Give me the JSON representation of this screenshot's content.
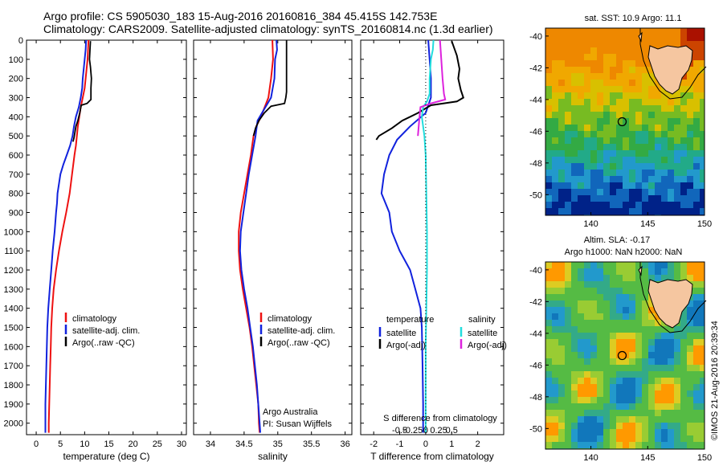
{
  "header": {
    "line1": "Argo profile: CS 5905030_183 15-Aug-2016 20160816_384 45.415S 142.753E",
    "line2": "Climatology: CARS2009. Satellite-adjusted climatology: synTS_20160814.nc (1.3d earlier)"
  },
  "colors": {
    "climatology": "#ee1111",
    "satellite": "#1122dd",
    "argo": "#000000",
    "sat_salinity": "#22dddd",
    "argo_salinity": "#dd22dd"
  },
  "depth_ticks": [
    0,
    100,
    200,
    300,
    400,
    500,
    600,
    700,
    800,
    900,
    1000,
    1100,
    1200,
    1300,
    1400,
    1500,
    1600,
    1700,
    1800,
    1900,
    2000
  ],
  "chart_data": [
    {
      "type": "line",
      "xlabel": "temperature (deg C)",
      "xlim": [
        -2,
        31
      ],
      "ylim": [
        2060,
        0
      ],
      "xticks": [
        0,
        5,
        10,
        15,
        20,
        25,
        30
      ],
      "legend": [
        "climatology",
        "satellite-adj. clim.",
        "Argo(..raw -QC)"
      ],
      "series": [
        {
          "name": "climatology",
          "points": [
            [
              10.8,
              0
            ],
            [
              10.7,
              50
            ],
            [
              10.6,
              100
            ],
            [
              10.4,
              150
            ],
            [
              10.2,
              200
            ],
            [
              10.0,
              250
            ],
            [
              9.6,
              300
            ],
            [
              9.2,
              350
            ],
            [
              8.9,
              400
            ],
            [
              8.6,
              450
            ],
            [
              8.4,
              500
            ],
            [
              8.2,
              550
            ],
            [
              7.9,
              600
            ],
            [
              7.4,
              700
            ],
            [
              6.9,
              800
            ],
            [
              6.2,
              900
            ],
            [
              5.4,
              1000
            ],
            [
              4.7,
              1100
            ],
            [
              4.1,
              1200
            ],
            [
              3.6,
              1300
            ],
            [
              3.3,
              1400
            ],
            [
              3.1,
              1500
            ],
            [
              3.0,
              1600
            ],
            [
              2.9,
              1700
            ],
            [
              2.8,
              1800
            ],
            [
              2.7,
              1900
            ],
            [
              2.6,
              2000
            ],
            [
              2.6,
              2050
            ]
          ]
        },
        {
          "name": "satellite-adj. clim.",
          "points": [
            [
              10.3,
              0
            ],
            [
              10.2,
              50
            ],
            [
              10.0,
              100
            ],
            [
              9.8,
              150
            ],
            [
              9.6,
              200
            ],
            [
              9.5,
              250
            ],
            [
              9.2,
              300
            ],
            [
              8.8,
              350
            ],
            [
              8.2,
              400
            ],
            [
              7.8,
              450
            ],
            [
              7.5,
              500
            ],
            [
              7.0,
              550
            ],
            [
              6.3,
              600
            ],
            [
              5.6,
              650
            ],
            [
              5.0,
              700
            ],
            [
              4.7,
              750
            ],
            [
              4.4,
              800
            ],
            [
              4.3,
              850
            ],
            [
              4.1,
              900
            ],
            [
              3.8,
              1000
            ],
            [
              3.4,
              1100
            ],
            [
              3.1,
              1200
            ],
            [
              2.8,
              1300
            ],
            [
              2.5,
              1400
            ],
            [
              2.3,
              1500
            ],
            [
              2.2,
              1600
            ],
            [
              2.1,
              1700
            ],
            [
              2.0,
              1800
            ],
            [
              1.9,
              1900
            ],
            [
              1.9,
              2000
            ],
            [
              1.9,
              2050
            ]
          ]
        },
        {
          "name": "Argo(..raw -QC)",
          "points": [
            [
              11.2,
              5
            ],
            [
              11.1,
              50
            ],
            [
              11.0,
              100
            ],
            [
              11.2,
              140
            ],
            [
              11.4,
              200
            ],
            [
              11.3,
              250
            ],
            [
              11.3,
              310
            ],
            [
              10.5,
              330
            ],
            [
              9.3,
              340
            ],
            [
              9.0,
              380
            ],
            [
              8.6,
              420
            ],
            [
              8.2,
              450
            ],
            [
              8.0,
              480
            ],
            [
              7.8,
              510
            ],
            [
              7.6,
              530
            ]
          ]
        }
      ]
    },
    {
      "type": "line",
      "xlabel": "salinity",
      "xlim": [
        33.75,
        36.1
      ],
      "ylim": [
        2060,
        0
      ],
      "xticks": [
        34,
        34.5,
        35,
        35.5,
        36
      ],
      "tick_labels": [
        "34",
        "34.5",
        "35",
        "35.5",
        "36"
      ],
      "legend": [
        "climatology",
        "satellite-adj. clim.",
        "Argo(..raw -QC)"
      ],
      "annotation": [
        "Argo Australia",
        "PI: Susan Wijffels"
      ],
      "series": [
        {
          "name": "climatology",
          "points": [
            [
              34.92,
              0
            ],
            [
              34.93,
              100
            ],
            [
              34.9,
              200
            ],
            [
              34.86,
              300
            ],
            [
              34.75,
              400
            ],
            [
              34.68,
              450
            ],
            [
              34.64,
              500
            ],
            [
              34.62,
              550
            ],
            [
              34.6,
              600
            ],
            [
              34.55,
              700
            ],
            [
              34.5,
              800
            ],
            [
              34.45,
              900
            ],
            [
              34.42,
              1000
            ],
            [
              34.42,
              1100
            ],
            [
              34.44,
              1200
            ],
            [
              34.48,
              1300
            ],
            [
              34.53,
              1400
            ],
            [
              34.58,
              1500
            ],
            [
              34.62,
              1600
            ],
            [
              34.65,
              1700
            ],
            [
              34.68,
              1800
            ],
            [
              34.71,
              1900
            ],
            [
              34.72,
              2000
            ],
            [
              34.73,
              2050
            ]
          ]
        },
        {
          "name": "satellite-adj. clim.",
          "points": [
            [
              34.98,
              0
            ],
            [
              34.99,
              50
            ],
            [
              34.96,
              100
            ],
            [
              34.95,
              200
            ],
            [
              34.9,
              300
            ],
            [
              34.8,
              360
            ],
            [
              34.7,
              420
            ],
            [
              34.67,
              500
            ],
            [
              34.62,
              600
            ],
            [
              34.57,
              700
            ],
            [
              34.53,
              800
            ],
            [
              34.49,
              900
            ],
            [
              34.45,
              1000
            ],
            [
              34.44,
              1100
            ],
            [
              34.46,
              1200
            ],
            [
              34.5,
              1300
            ],
            [
              34.55,
              1400
            ],
            [
              34.59,
              1500
            ],
            [
              34.63,
              1600
            ],
            [
              34.66,
              1700
            ],
            [
              34.69,
              1800
            ],
            [
              34.71,
              1900
            ],
            [
              34.73,
              2000
            ],
            [
              34.74,
              2050
            ]
          ]
        },
        {
          "name": "Argo(..raw -QC)",
          "points": [
            [
              35.13,
              0
            ],
            [
              35.13,
              100
            ],
            [
              35.13,
              200
            ],
            [
              35.13,
              270
            ],
            [
              35.12,
              300
            ],
            [
              35.1,
              330
            ],
            [
              34.9,
              345
            ],
            [
              34.8,
              380
            ],
            [
              34.72,
              420
            ],
            [
              34.67,
              460
            ],
            [
              34.64,
              500
            ]
          ]
        }
      ]
    },
    {
      "type": "line",
      "xlabel": "T difference from climatology",
      "x2label": "S difference from climatology",
      "xlim": [
        -2.5,
        3.0
      ],
      "ylim": [
        2060,
        0
      ],
      "xticks": [
        -2,
        -1,
        0,
        1,
        2
      ],
      "x2ticks": [
        -0.5,
        -0.25,
        0,
        0.25,
        0.5
      ],
      "x2tick_labels": [
        "-0.5",
        "-0.25",
        "0",
        "0.25",
        "0.5"
      ],
      "legend_headers": [
        "temperature",
        "salinity"
      ],
      "legend": [
        "satellite",
        "Argo(-adj)",
        "satellite",
        "Argo(-adj)"
      ],
      "series": [
        {
          "name": "temperature satellite",
          "points": [
            [
              0.1,
              0
            ],
            [
              0.15,
              100
            ],
            [
              0.2,
              200
            ],
            [
              0.2,
              300
            ],
            [
              0.0,
              380
            ],
            [
              -0.6,
              450
            ],
            [
              -1.1,
              520
            ],
            [
              -1.4,
              600
            ],
            [
              -1.6,
              700
            ],
            [
              -1.7,
              800
            ],
            [
              -1.4,
              900
            ],
            [
              -1.3,
              1000
            ],
            [
              -1.0,
              1100
            ],
            [
              -0.6,
              1200
            ],
            [
              -0.4,
              1300
            ],
            [
              -0.2,
              1400
            ],
            [
              -0.15,
              1500
            ],
            [
              -0.12,
              1700
            ],
            [
              -0.1,
              1900
            ],
            [
              -0.1,
              2050
            ]
          ]
        },
        {
          "name": "temperature Argo(-adj)",
          "points": [
            [
              1.0,
              5
            ],
            [
              1.2,
              80
            ],
            [
              1.3,
              150
            ],
            [
              1.25,
              200
            ],
            [
              1.35,
              260
            ],
            [
              1.45,
              300
            ],
            [
              1.2,
              320
            ],
            [
              0.2,
              340
            ],
            [
              -0.3,
              380
            ],
            [
              -0.9,
              420
            ],
            [
              -1.3,
              460
            ],
            [
              -1.8,
              500
            ],
            [
              -1.9,
              520
            ]
          ]
        },
        {
          "name": "salinity satellite",
          "points": [
            [
              0.6,
              0
            ],
            [
              0.55,
              50
            ],
            [
              0.4,
              100
            ],
            [
              0.35,
              150
            ],
            [
              0.3,
              200
            ],
            [
              0.3,
              280
            ],
            [
              0.1,
              320
            ],
            [
              -0.2,
              350
            ],
            [
              -0.3,
              400
            ],
            [
              -0.2,
              450
            ],
            [
              -0.1,
              500
            ],
            [
              0.0,
              600
            ],
            [
              0.05,
              800
            ],
            [
              0.1,
              1000
            ],
            [
              0.1,
              1200
            ],
            [
              0.05,
              1400
            ],
            [
              0.0,
              1600
            ],
            [
              0.0,
              1800
            ],
            [
              0.0,
              2050
            ]
          ]
        },
        {
          "name": "salinity Argo(-adj)",
          "points": [
            [
              1.1,
              0
            ],
            [
              1.2,
              100
            ],
            [
              1.3,
              200
            ],
            [
              1.4,
              280
            ],
            [
              1.5,
              310
            ],
            [
              0.4,
              330
            ],
            [
              -0.4,
              350
            ],
            [
              -0.5,
              420
            ],
            [
              -0.6,
              500
            ]
          ]
        }
      ]
    },
    {
      "type": "heatmap",
      "title": "sat. SST: 10.9 Argo: 11.1",
      "xticks": [
        140,
        145,
        150
      ],
      "yticks": [
        "-40",
        "-42",
        "-44",
        "-46",
        "-48",
        "-50"
      ],
      "marker": [
        142.75,
        -45.4
      ]
    },
    {
      "type": "heatmap",
      "title_lines": [
        "Altim. SLA: -0.17",
        "Argo h1000: NaN h2000: NaN"
      ],
      "xticks": [
        140,
        145,
        150
      ],
      "yticks": [
        "-40",
        "-42",
        "-44",
        "-46",
        "-48",
        "-50"
      ],
      "marker": [
        142.75,
        -45.4
      ]
    }
  ],
  "footer_stamp": "©IMOS 21-Aug-2016 20:39:34"
}
